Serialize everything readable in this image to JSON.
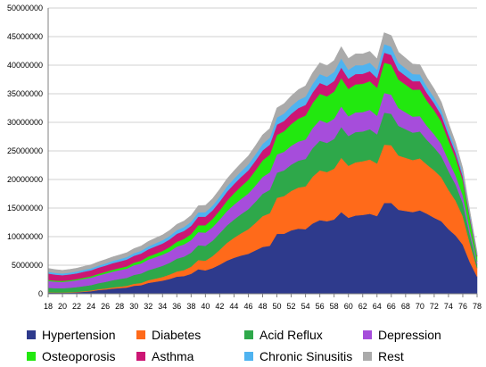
{
  "chart_data": {
    "type": "area",
    "stacked": true,
    "x": [
      18,
      19,
      20,
      21,
      22,
      23,
      24,
      25,
      26,
      27,
      28,
      29,
      30,
      31,
      32,
      33,
      34,
      35,
      36,
      37,
      38,
      39,
      40,
      41,
      42,
      43,
      44,
      45,
      46,
      47,
      48,
      49,
      50,
      51,
      52,
      53,
      54,
      55,
      56,
      57,
      58,
      59,
      60,
      61,
      62,
      63,
      64,
      65,
      66,
      67,
      68,
      69,
      70,
      71,
      72,
      73,
      74,
      75,
      76,
      77,
      78
    ],
    "xticks": [
      18,
      20,
      22,
      24,
      26,
      28,
      30,
      32,
      34,
      36,
      38,
      40,
      42,
      44,
      46,
      48,
      50,
      52,
      54,
      56,
      58,
      60,
      62,
      64,
      66,
      68,
      70,
      72,
      74,
      76,
      78
    ],
    "ylim": [
      0,
      50000000
    ],
    "yticks": [
      0,
      5000000,
      10000000,
      15000000,
      20000000,
      25000000,
      30000000,
      35000000,
      40000000,
      45000000,
      50000000
    ],
    "ytick_labels": [
      "0",
      "5000000",
      "10000000",
      "15000000",
      "20000000",
      "25000000",
      "30000000",
      "35000000",
      "40000000",
      "45000000",
      "50000000"
    ],
    "grid": "horizontal",
    "legend_position": "bottom",
    "series": [
      {
        "name": "Hypertension",
        "color": "#2E3A8C",
        "values": [
          200000,
          180000,
          180000,
          190000,
          250000,
          350000,
          450000,
          650000,
          750000,
          900000,
          1000000,
          1100000,
          1400000,
          1500000,
          1900000,
          2100000,
          2300000,
          2600000,
          3000000,
          3100000,
          3500000,
          4300000,
          4100000,
          4500000,
          5100000,
          5800000,
          6300000,
          6700000,
          7000000,
          7600000,
          8200000,
          8400000,
          10500000,
          10500000,
          11100000,
          11400000,
          11300000,
          12300000,
          12900000,
          12700000,
          13000000,
          14300000,
          13300000,
          13700000,
          13800000,
          14000000,
          13600000,
          15900000,
          15900000,
          14700000,
          14500000,
          14300000,
          14600000,
          14000000,
          13300000,
          12700000,
          11300000,
          10200000,
          8600000,
          5500000,
          3000000
        ]
      },
      {
        "name": "Diabetes",
        "color": "#FF6A1A",
        "values": [
          50000,
          50000,
          50000,
          60000,
          80000,
          100000,
          130000,
          150000,
          180000,
          220000,
          250000,
          300000,
          350000,
          400000,
          480000,
          550000,
          650000,
          780000,
          900000,
          1050000,
          1250000,
          1600000,
          1700000,
          2100000,
          2600000,
          3100000,
          3500000,
          3900000,
          4300000,
          4800000,
          5400000,
          5700000,
          6300000,
          6600000,
          6900000,
          7200000,
          7500000,
          8200000,
          8700000,
          8600000,
          8900000,
          9500000,
          9100000,
          9300000,
          9400000,
          9500000,
          9200000,
          10200000,
          10100000,
          9500000,
          9300000,
          9100000,
          9100000,
          8600000,
          8300000,
          7700000,
          6900000,
          6100000,
          5000000,
          3300000,
          1500000
        ]
      },
      {
        "name": "Acid Reflux",
        "color": "#2EA84A",
        "values": [
          800000,
          750000,
          750000,
          800000,
          850000,
          900000,
          950000,
          1050000,
          1150000,
          1250000,
          1350000,
          1400000,
          1550000,
          1650000,
          1750000,
          1850000,
          1950000,
          2050000,
          2250000,
          2350000,
          2450000,
          2600000,
          2600000,
          2700000,
          2900000,
          3050000,
          3200000,
          3350000,
          3500000,
          3700000,
          3900000,
          4100000,
          4400000,
          4500000,
          4600000,
          4700000,
          4800000,
          5000000,
          5200000,
          5100000,
          5200000,
          5400000,
          5200000,
          5300000,
          5200000,
          5300000,
          5100000,
          5600000,
          5500000,
          5200000,
          5000000,
          4800000,
          4700000,
          4300000,
          4000000,
          3700000,
          3300000,
          2800000,
          2300000,
          1500000,
          700000
        ]
      },
      {
        "name": "Depression",
        "color": "#A64DDB",
        "values": [
          1200000,
          1150000,
          1100000,
          1150000,
          1200000,
          1250000,
          1300000,
          1350000,
          1450000,
          1500000,
          1550000,
          1600000,
          1700000,
          1750000,
          1850000,
          1900000,
          1950000,
          2000000,
          2100000,
          2150000,
          2200000,
          2300000,
          2300000,
          2350000,
          2400000,
          2500000,
          2600000,
          2650000,
          2750000,
          2850000,
          2950000,
          3050000,
          3200000,
          3250000,
          3300000,
          3350000,
          3400000,
          3500000,
          3600000,
          3500000,
          3550000,
          3600000,
          3450000,
          3450000,
          3400000,
          3400000,
          3250000,
          3450000,
          3350000,
          3100000,
          2950000,
          2800000,
          2700000,
          2450000,
          2300000,
          2100000,
          1850000,
          1600000,
          1350000,
          900000,
          450000
        ]
      },
      {
        "name": "Osteoporosis",
        "color": "#22E80F",
        "values": [
          200000,
          180000,
          180000,
          190000,
          200000,
          220000,
          240000,
          270000,
          300000,
          330000,
          360000,
          400000,
          450000,
          500000,
          550000,
          600000,
          650000,
          750000,
          850000,
          950000,
          1050000,
          1200000,
          1300000,
          1450000,
          1600000,
          1800000,
          2000000,
          2200000,
          2400000,
          2650000,
          2900000,
          3100000,
          3400000,
          3600000,
          3800000,
          4000000,
          4200000,
          4400000,
          4600000,
          4650000,
          4750000,
          4950000,
          4800000,
          4900000,
          4950000,
          5000000,
          4900000,
          5300000,
          5250000,
          5000000,
          4850000,
          4700000,
          4650000,
          4400000,
          4200000,
          3900000,
          3500000,
          3100000,
          2600000,
          1800000,
          900000
        ]
      },
      {
        "name": "Asthma",
        "color": "#CC1674",
        "values": [
          1100000,
          1050000,
          1000000,
          1000000,
          1000000,
          1050000,
          1050000,
          1100000,
          1100000,
          1150000,
          1150000,
          1200000,
          1200000,
          1250000,
          1250000,
          1300000,
          1300000,
          1350000,
          1400000,
          1400000,
          1450000,
          1500000,
          1500000,
          1500000,
          1550000,
          1600000,
          1600000,
          1650000,
          1650000,
          1700000,
          1750000,
          1750000,
          1800000,
          1800000,
          1800000,
          1850000,
          1850000,
          1850000,
          1900000,
          1850000,
          1850000,
          1850000,
          1800000,
          1800000,
          1750000,
          1750000,
          1700000,
          1750000,
          1700000,
          1600000,
          1550000,
          1500000,
          1450000,
          1350000,
          1250000,
          1150000,
          1000000,
          850000,
          700000,
          450000,
          250000
        ]
      },
      {
        "name": "Chronic Sinusitis",
        "color": "#4FB3F0",
        "values": [
          300000,
          300000,
          300000,
          310000,
          320000,
          330000,
          340000,
          360000,
          380000,
          400000,
          420000,
          440000,
          460000,
          480000,
          510000,
          540000,
          570000,
          600000,
          640000,
          680000,
          720000,
          760000,
          790000,
          830000,
          870000,
          920000,
          960000,
          1000000,
          1050000,
          1100000,
          1150000,
          1200000,
          1250000,
          1300000,
          1350000,
          1400000,
          1450000,
          1500000,
          1550000,
          1550000,
          1580000,
          1600000,
          1550000,
          1550000,
          1500000,
          1500000,
          1450000,
          1500000,
          1450000,
          1350000,
          1300000,
          1250000,
          1200000,
          1100000,
          1000000,
          900000,
          800000,
          700000,
          550000,
          380000,
          200000
        ]
      },
      {
        "name": "Rest",
        "color": "#AAAAAA",
        "values": [
          600000,
          580000,
          560000,
          570000,
          580000,
          600000,
          620000,
          650000,
          680000,
          700000,
          730000,
          760000,
          800000,
          830000,
          870000,
          900000,
          940000,
          980000,
          1020000,
          1060000,
          1100000,
          1150000,
          1190000,
          1230000,
          1280000,
          1330000,
          1380000,
          1420000,
          1470000,
          1520000,
          1570000,
          1620000,
          1680000,
          1730000,
          1780000,
          1830000,
          1880000,
          1930000,
          1980000,
          1980000,
          2000000,
          2050000,
          1980000,
          1990000,
          1980000,
          1980000,
          1920000,
          2000000,
          1950000,
          1850000,
          1800000,
          1750000,
          1700000,
          1600000,
          1500000,
          1400000,
          1250000,
          1100000,
          900000,
          620000,
          350000
        ]
      }
    ]
  }
}
